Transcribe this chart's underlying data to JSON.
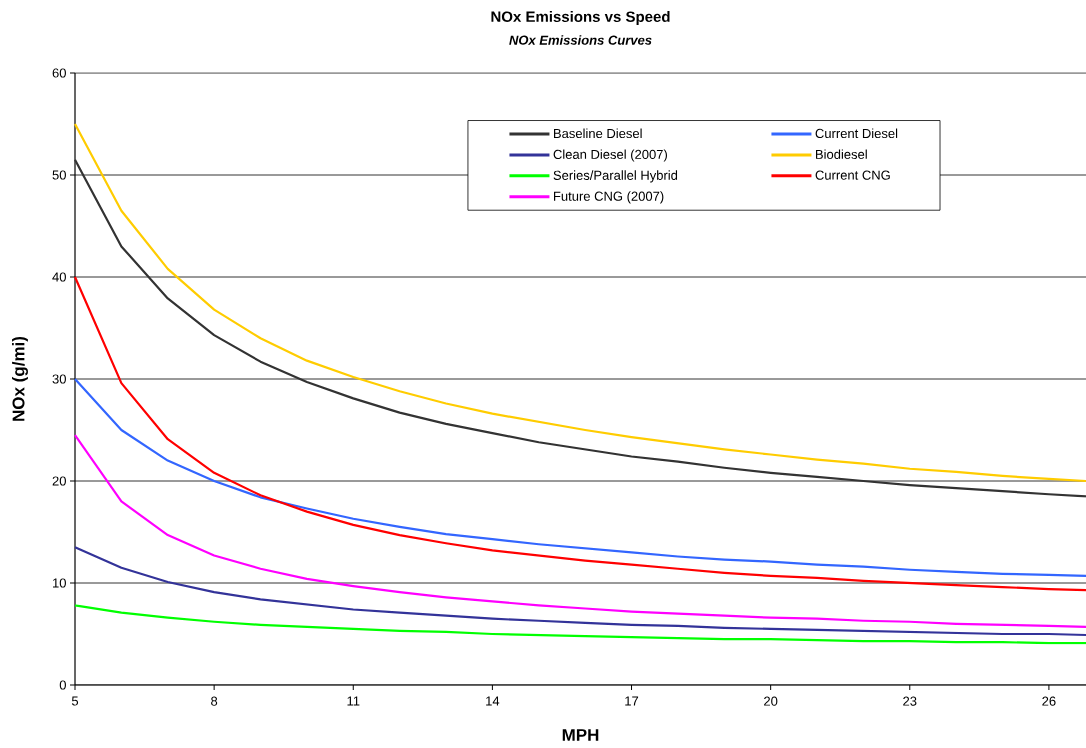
{
  "chart_data": {
    "type": "line",
    "title": "NOx Emissions vs Speed",
    "subtitle": "NOx  Emissions Curves",
    "xlabel": "MPH",
    "ylabel": "NOx (g/mi)",
    "x": [
      5,
      6,
      7,
      8,
      9,
      10,
      11,
      12,
      13,
      14,
      15,
      16,
      17,
      18,
      19,
      20,
      21,
      22,
      23,
      24,
      25,
      26,
      26.8
    ],
    "series": [
      {
        "name": "Baseline Diesel",
        "color": "#333333",
        "values": [
          51.5,
          43,
          37.9,
          34.3,
          31.7,
          29.7,
          28.1,
          26.7,
          25.6,
          24.7,
          23.8,
          23.1,
          22.4,
          21.9,
          21.3,
          20.8,
          20.4,
          20.0,
          19.6,
          19.3,
          19.0,
          18.7,
          18.5
        ]
      },
      {
        "name": "Current Diesel",
        "color": "#3366ff",
        "values": [
          30,
          25,
          22,
          20,
          18.4,
          17.3,
          16.3,
          15.5,
          14.8,
          14.3,
          13.8,
          13.4,
          13.0,
          12.6,
          12.3,
          12.1,
          11.8,
          11.6,
          11.3,
          11.1,
          10.9,
          10.8,
          10.7
        ]
      },
      {
        "name": "Clean Diesel (2007)",
        "color": "#333399",
        "values": [
          13.5,
          11.5,
          10.1,
          9.1,
          8.4,
          7.9,
          7.4,
          7.1,
          6.8,
          6.5,
          6.3,
          6.1,
          5.9,
          5.8,
          5.6,
          5.5,
          5.4,
          5.3,
          5.2,
          5.1,
          5.0,
          5.0,
          4.9
        ]
      },
      {
        "name": "Biodiesel",
        "color": "#ffcc00",
        "values": [
          55,
          46.5,
          40.8,
          36.8,
          34.0,
          31.8,
          30.2,
          28.8,
          27.6,
          26.6,
          25.8,
          25.0,
          24.3,
          23.7,
          23.1,
          22.6,
          22.1,
          21.7,
          21.2,
          20.9,
          20.5,
          20.2,
          20.0
        ]
      },
      {
        "name": "Series/Parallel Hybrid",
        "color": "#00ff00",
        "values": [
          7.8,
          7.1,
          6.6,
          6.2,
          5.9,
          5.7,
          5.5,
          5.3,
          5.2,
          5.0,
          4.9,
          4.8,
          4.7,
          4.6,
          4.5,
          4.5,
          4.4,
          4.3,
          4.3,
          4.2,
          4.2,
          4.1,
          4.1
        ]
      },
      {
        "name": "Current CNG",
        "color": "#ff0000",
        "values": [
          40,
          29.6,
          24.1,
          20.8,
          18.6,
          17.0,
          15.7,
          14.7,
          13.9,
          13.2,
          12.7,
          12.2,
          11.8,
          11.4,
          11.0,
          10.7,
          10.5,
          10.2,
          10.0,
          9.8,
          9.6,
          9.4,
          9.3
        ]
      },
      {
        "name": "Future CNG (2007)",
        "color": "#ff00ff",
        "values": [
          24.5,
          18,
          14.7,
          12.7,
          11.4,
          10.4,
          9.7,
          9.1,
          8.6,
          8.2,
          7.8,
          7.5,
          7.2,
          7.0,
          6.8,
          6.6,
          6.5,
          6.3,
          6.2,
          6.0,
          5.9,
          5.8,
          5.7
        ]
      }
    ],
    "xlim": [
      5,
      26.8
    ],
    "ylim": [
      0,
      60
    ],
    "xticks": [
      5,
      8,
      11,
      14,
      17,
      20,
      23,
      26
    ],
    "yticks": [
      0,
      10,
      20,
      30,
      40,
      50,
      60
    ],
    "grid": "y",
    "legend": "top right",
    "marker": "none",
    "line_style": "solid"
  }
}
